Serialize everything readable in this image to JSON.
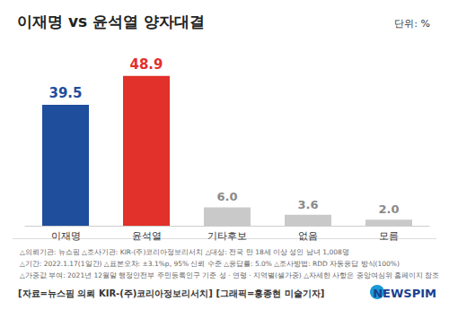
{
  "chart_data": {
    "type": "bar",
    "title": "이재명 vs 윤석열 양자대결",
    "subtitle": "단위: %",
    "categories": [
      "이재명",
      "윤석열",
      "기타후보",
      "없음",
      "모름"
    ],
    "values": [
      39.5,
      48.9,
      6.0,
      3.6,
      2.0
    ],
    "value_labels": [
      "39.5",
      "48.9",
      "6.0",
      "3.6",
      "2.0"
    ],
    "colors": [
      "#1f4e9c",
      "#e2302a",
      "#c9c9c9",
      "#c9c9c9",
      "#c9c9c9"
    ],
    "ylim": [
      0,
      55
    ],
    "grid": false,
    "data_labels": true,
    "tick_labels": "x",
    "annotations": [
      "△의뢰기관: 뉴스핌 △조사기관: KIR-(주)코리아정보리서치 △대상: 전국 만 18세 이상 성인 남녀 1,008명",
      "△기간: 2022.1.17(1일간) △표본오차: ±3.1%p, 95% 신뢰 수준 △응답률: 5.0% △조사방법: RDD 자동응답 방식(100%)",
      "△가중값 부여: 2021년 12월말 행정안전부 주민등록인구 기준 성 · 연령 · 지역별(셀가중) △자세한 사항은 중앙여심위 홈페이지 참조",
      "[자료=뉴스핌 의뢰 KIR-(주)코리아정보리서치] [그래픽=홍종현 미술기자]",
      "NEWSPIM"
    ]
  }
}
